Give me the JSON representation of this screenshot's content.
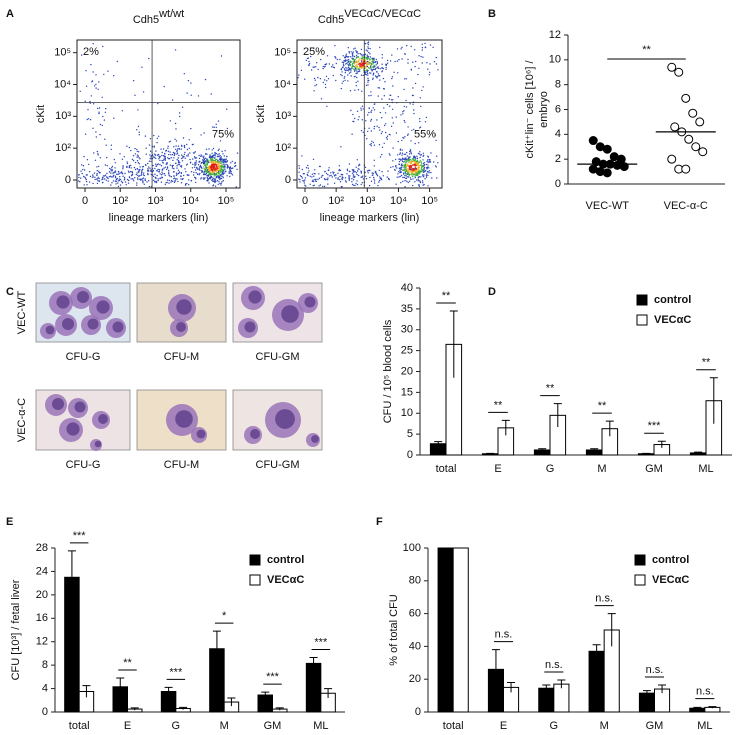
{
  "chart_data": [
    {
      "type": "flow",
      "panel": "A",
      "plots": [
        {
          "title": "Cdh5",
          "title_superscript": "wt/wt",
          "annotations": [
            "2%",
            "75%"
          ]
        },
        {
          "title": "Cdh5",
          "title_superscript": "VECαC/VECαC",
          "annotations": [
            "25%",
            "55%"
          ]
        }
      ],
      "xlabel": "lineage markers (lin)",
      "ylabel": "cKit",
      "xlim": [
        0,
        250000
      ],
      "ylim": [
        0,
        250000
      ],
      "xticks": [
        0,
        {
          "value": 100,
          "label": "10²"
        },
        {
          "value": 1000,
          "label": "10³"
        },
        {
          "value": 10000,
          "label": "10⁴"
        },
        {
          "value": 100000,
          "label": "10⁵"
        }
      ],
      "yticks": [
        0,
        {
          "value": 100,
          "label": "10²"
        },
        {
          "value": 1000,
          "label": "10³"
        },
        {
          "value": 10000,
          "label": "10⁴"
        },
        {
          "value": 100000,
          "label": "10⁵"
        }
      ],
      "log_scale": true,
      "gate": [
        800,
        2700
      ]
    },
    {
      "type": "dot",
      "panel": "B",
      "ylabel": [
        "cKit⁺lin⁻ cells [10⁶] /",
        "embryo"
      ],
      "categories": [
        "VEC-WT",
        "VEC-α-C"
      ],
      "points": [
        [
          3.5,
          3.0,
          2.8,
          2.2,
          2.0,
          1.8,
          1.6,
          1.6,
          1.5,
          1.4,
          1.2,
          1.0,
          0.9
        ],
        [
          9.4,
          9.0,
          6.9,
          5.7,
          5.0,
          4.6,
          4.2,
          3.6,
          3.0,
          2.6,
          2.0,
          1.2,
          1.2
        ]
      ],
      "means": [
        1.6,
        4.2
      ],
      "markers": [
        "filled",
        "open"
      ],
      "color": "#000000",
      "ylim": [
        0,
        12
      ],
      "yticks": [
        0,
        2,
        4,
        6,
        8,
        10,
        12
      ],
      "significance": "**"
    },
    {
      "type": "bar",
      "panel": "D",
      "ylabel": "CFU / 10⁵ blood cells",
      "categories": [
        "total",
        "E",
        "G",
        "M",
        "GM",
        "ML"
      ],
      "series": [
        {
          "name": "control",
          "color": "#000000",
          "values": [
            2.7,
            0.3,
            1.2,
            1.2,
            0.3,
            0.5
          ],
          "errors": [
            0.5,
            0.1,
            0.3,
            0.3,
            0.1,
            0.2
          ]
        },
        {
          "name": "VECαC",
          "color": "#ffffff",
          "values": [
            26.5,
            6.5,
            9.5,
            6.3,
            2.5,
            13
          ],
          "errors": [
            8,
            1.8,
            2.8,
            1.8,
            0.8,
            5.5
          ]
        }
      ],
      "significance": [
        "**",
        "**",
        "**",
        "**",
        "***",
        "**"
      ],
      "ylim": [
        0,
        40
      ],
      "yticks": [
        0,
        5,
        10,
        15,
        20,
        25,
        30,
        35,
        40
      ],
      "legend": "top-right"
    },
    {
      "type": "bar",
      "panel": "E",
      "ylabel": "CFU [10³] / fetal liver",
      "categories": [
        "total",
        "E",
        "G",
        "M",
        "GM",
        "ML"
      ],
      "series": [
        {
          "name": "control",
          "color": "#000000",
          "values": [
            23,
            4.3,
            3.5,
            10.8,
            2.9,
            8.3
          ],
          "errors": [
            4.5,
            1.5,
            0.7,
            3,
            0.5,
            1
          ]
        },
        {
          "name": "VECαC",
          "color": "#ffffff",
          "values": [
            3.5,
            0.5,
            0.6,
            1.7,
            0.5,
            3.2
          ],
          "errors": [
            1,
            0.2,
            0.2,
            0.7,
            0.2,
            0.8
          ]
        }
      ],
      "significance": [
        "***",
        "**",
        "***",
        "*",
        "***",
        "***"
      ],
      "ylim": [
        0,
        28
      ],
      "yticks": [
        0,
        4,
        8,
        12,
        16,
        20,
        24,
        28
      ],
      "legend": "top-right"
    },
    {
      "type": "bar",
      "panel": "F",
      "ylabel": "% of total CFU",
      "categories": [
        "total",
        "E",
        "G",
        "M",
        "GM",
        "ML"
      ],
      "series": [
        {
          "name": "control",
          "color": "#000000",
          "values": [
            100,
            26,
            14.5,
            37,
            11.5,
            2.3
          ],
          "errors": [
            0,
            12,
            2,
            4,
            1.5,
            0.5
          ]
        },
        {
          "name": "VECαC",
          "color": "#ffffff",
          "values": [
            100,
            15,
            17,
            50,
            14,
            2.8
          ],
          "errors": [
            0,
            3,
            2.5,
            10,
            2.5,
            0.5
          ]
        }
      ],
      "significance": [
        null,
        "n.s.",
        "n.s.",
        "n.s.",
        "n.s.",
        "n.s."
      ],
      "ylim": [
        0,
        100
      ],
      "yticks": [
        0,
        20,
        40,
        60,
        80,
        100
      ],
      "legend": "top-right"
    }
  ],
  "micrographs": {
    "panel": "C",
    "rows": [
      "VEC-WT",
      "VEC-α-C"
    ],
    "captions": [
      "CFU-G",
      "CFU-M",
      "CFU-GM"
    ]
  }
}
